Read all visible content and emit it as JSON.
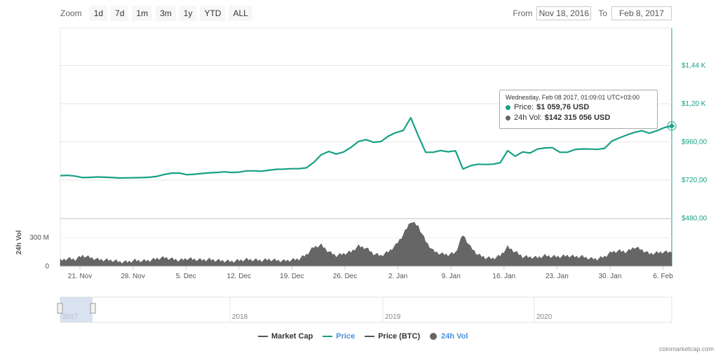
{
  "toolbar": {
    "zoom_label": "Zoom",
    "buttons": [
      "1d",
      "7d",
      "1m",
      "3m",
      "1y",
      "YTD",
      "ALL"
    ]
  },
  "range": {
    "from_label": "From",
    "from_value": "Nov 18, 2016",
    "to_label": "To",
    "to_value": "Feb 8, 2017"
  },
  "tooltip": {
    "date": "Wednesday, Feb 08 2017, 01:09:01 UTC+03:00",
    "price_label": "Price:",
    "price_value": "$1 059,76 USD",
    "vol_label": "24h Vol:",
    "vol_value": "$142 315 056 USD"
  },
  "legend": [
    {
      "label": "Market Cap",
      "color": "#555555",
      "style": "line"
    },
    {
      "label": "Price",
      "color": "#16a085",
      "style": "line"
    },
    {
      "label": "Price (BTC)",
      "color": "#555555",
      "style": "line"
    },
    {
      "label": "24h Vol",
      "color": "#4a90d9",
      "style": "circle"
    }
  ],
  "credit": "coinmarketcap.com",
  "colors": {
    "price": "#16a085",
    "volume": "#666666",
    "navigator_fill": "#c9d5ea"
  },
  "chart_data": [
    {
      "type": "line",
      "ylim": [
        480,
        1680
      ],
      "yticks": [
        {
          "value": 480,
          "label": "$480,00"
        },
        {
          "value": 720,
          "label": "$720,00"
        },
        {
          "value": 960,
          "label": "$960,00"
        },
        {
          "value": 1200,
          "label": "$1,20 K"
        },
        {
          "value": 1440,
          "label": "$1,44 K"
        }
      ],
      "xticks": [
        "21. Nov",
        "28. Nov",
        "5. Dec",
        "12. Dec",
        "19. Dec",
        "26. Dec",
        "2. Jan",
        "9. Jan",
        "16. Jan",
        "23. Jan",
        "30. Jan",
        "6. Feb"
      ],
      "xlim": [
        "2016-11-18",
        "2017-02-08"
      ],
      "series": [
        {
          "name": "Price",
          "points": [
            [
              "2016-11-18",
              748
            ],
            [
              "2016-11-19",
              750
            ],
            [
              "2016-11-20",
              745
            ],
            [
              "2016-11-21",
              736
            ],
            [
              "2016-11-22",
              737
            ],
            [
              "2016-11-23",
              740
            ],
            [
              "2016-11-24",
              738
            ],
            [
              "2016-11-25",
              736
            ],
            [
              "2016-11-26",
              733
            ],
            [
              "2016-11-27",
              734
            ],
            [
              "2016-11-28",
              735
            ],
            [
              "2016-11-29",
              736
            ],
            [
              "2016-11-30",
              738
            ],
            [
              "2016-12-01",
              744
            ],
            [
              "2016-12-02",
              756
            ],
            [
              "2016-12-03",
              764
            ],
            [
              "2016-12-04",
              764
            ],
            [
              "2016-12-05",
              754
            ],
            [
              "2016-12-06",
              757
            ],
            [
              "2016-12-07",
              762
            ],
            [
              "2016-12-08",
              766
            ],
            [
              "2016-12-09",
              768
            ],
            [
              "2016-12-10",
              772
            ],
            [
              "2016-12-11",
              768
            ],
            [
              "2016-12-12",
              770
            ],
            [
              "2016-12-13",
              778
            ],
            [
              "2016-12-14",
              778
            ],
            [
              "2016-12-15",
              776
            ],
            [
              "2016-12-16",
              782
            ],
            [
              "2016-12-17",
              788
            ],
            [
              "2016-12-18",
              789
            ],
            [
              "2016-12-19",
              792
            ],
            [
              "2016-12-20",
              792
            ],
            [
              "2016-12-21",
              797
            ],
            [
              "2016-12-22",
              832
            ],
            [
              "2016-12-23",
              880
            ],
            [
              "2016-12-24",
              900
            ],
            [
              "2016-12-25",
              884
            ],
            [
              "2016-12-26",
              897
            ],
            [
              "2016-12-27",
              926
            ],
            [
              "2016-12-28",
              963
            ],
            [
              "2016-12-29",
              974
            ],
            [
              "2016-12-30",
              958
            ],
            [
              "2016-12-31",
              962
            ],
            [
              "2017-01-01",
              996
            ],
            [
              "2017-01-02",
              1018
            ],
            [
              "2017-01-03",
              1032
            ],
            [
              "2017-01-04",
              1112
            ],
            [
              "2017-01-05",
              1000
            ],
            [
              "2017-01-06",
              895
            ],
            [
              "2017-01-07",
              895
            ],
            [
              "2017-01-08",
              906
            ],
            [
              "2017-01-09",
              898
            ],
            [
              "2017-01-10",
              904
            ],
            [
              "2017-01-11",
              790
            ],
            [
              "2017-01-12",
              810
            ],
            [
              "2017-01-13",
              820
            ],
            [
              "2017-01-14",
              818
            ],
            [
              "2017-01-15",
              820
            ],
            [
              "2017-01-16",
              829
            ],
            [
              "2017-01-17",
              905
            ],
            [
              "2017-01-18",
              870
            ],
            [
              "2017-01-19",
              897
            ],
            [
              "2017-01-20",
              890
            ],
            [
              "2017-01-21",
              915
            ],
            [
              "2017-01-22",
              922
            ],
            [
              "2017-01-23",
              924
            ],
            [
              "2017-01-24",
              895
            ],
            [
              "2017-01-25",
              895
            ],
            [
              "2017-01-26",
              912
            ],
            [
              "2017-01-27",
              916
            ],
            [
              "2017-01-28",
              915
            ],
            [
              "2017-01-29",
              913
            ],
            [
              "2017-01-30",
              920
            ],
            [
              "2017-01-31",
              966
            ],
            [
              "2017-02-01",
              986
            ],
            [
              "2017-02-02",
              1004
            ],
            [
              "2017-02-03",
              1020
            ],
            [
              "2017-02-04",
              1030
            ],
            [
              "2017-02-05",
              1015
            ],
            [
              "2017-02-06",
              1030
            ],
            [
              "2017-02-07",
              1050
            ],
            [
              "2017-02-08",
              1060
            ]
          ]
        },
        {
          "name": "24h Vol",
          "axis": "volume",
          "ylim": [
            0,
            500
          ],
          "yticks": [
            {
              "value": 0,
              "label": "0"
            },
            {
              "value": 300,
              "label": "300 M"
            }
          ],
          "ylabel": "24h Vol",
          "points": [
            [
              "2016-11-18",
              60
            ],
            [
              "2016-11-19",
              80
            ],
            [
              "2016-11-20",
              70
            ],
            [
              "2016-11-21",
              110
            ],
            [
              "2016-11-22",
              90
            ],
            [
              "2016-11-23",
              70
            ],
            [
              "2016-11-24",
              65
            ],
            [
              "2016-11-25",
              60
            ],
            [
              "2016-11-26",
              45
            ],
            [
              "2016-11-27",
              45
            ],
            [
              "2016-11-28",
              60
            ],
            [
              "2016-11-29",
              55
            ],
            [
              "2016-11-30",
              60
            ],
            [
              "2016-12-01",
              80
            ],
            [
              "2016-12-02",
              90
            ],
            [
              "2016-12-03",
              75
            ],
            [
              "2016-12-04",
              60
            ],
            [
              "2016-12-05",
              80
            ],
            [
              "2016-12-06",
              70
            ],
            [
              "2016-12-07",
              65
            ],
            [
              "2016-12-08",
              70
            ],
            [
              "2016-12-09",
              60
            ],
            [
              "2016-12-10",
              55
            ],
            [
              "2016-12-11",
              50
            ],
            [
              "2016-12-12",
              60
            ],
            [
              "2016-12-13",
              70
            ],
            [
              "2016-12-14",
              65
            ],
            [
              "2016-12-15",
              60
            ],
            [
              "2016-12-16",
              70
            ],
            [
              "2016-12-17",
              60
            ],
            [
              "2016-12-18",
              55
            ],
            [
              "2016-12-19",
              65
            ],
            [
              "2016-12-20",
              75
            ],
            [
              "2016-12-21",
              120
            ],
            [
              "2016-12-22",
              200
            ],
            [
              "2016-12-23",
              220
            ],
            [
              "2016-12-24",
              150
            ],
            [
              "2016-12-25",
              110
            ],
            [
              "2016-12-26",
              130
            ],
            [
              "2016-12-27",
              150
            ],
            [
              "2016-12-28",
              210
            ],
            [
              "2016-12-29",
              190
            ],
            [
              "2016-12-30",
              130
            ],
            [
              "2016-12-31",
              110
            ],
            [
              "2017-01-01",
              150
            ],
            [
              "2017-01-02",
              220
            ],
            [
              "2017-01-03",
              330
            ],
            [
              "2017-01-04",
              470
            ],
            [
              "2017-01-05",
              420
            ],
            [
              "2017-01-06",
              260
            ],
            [
              "2017-01-07",
              160
            ],
            [
              "2017-01-08",
              130
            ],
            [
              "2017-01-09",
              120
            ],
            [
              "2017-01-10",
              140
            ],
            [
              "2017-01-11",
              330
            ],
            [
              "2017-01-12",
              200
            ],
            [
              "2017-01-13",
              120
            ],
            [
              "2017-01-14",
              90
            ],
            [
              "2017-01-15",
              80
            ],
            [
              "2017-01-16",
              110
            ],
            [
              "2017-01-17",
              200
            ],
            [
              "2017-01-18",
              150
            ],
            [
              "2017-01-19",
              100
            ],
            [
              "2017-01-20",
              95
            ],
            [
              "2017-01-21",
              90
            ],
            [
              "2017-01-22",
              110
            ],
            [
              "2017-01-23",
              100
            ],
            [
              "2017-01-24",
              100
            ],
            [
              "2017-01-25",
              110
            ],
            [
              "2017-01-26",
              100
            ],
            [
              "2017-01-27",
              100
            ],
            [
              "2017-01-28",
              80
            ],
            [
              "2017-01-29",
              75
            ],
            [
              "2017-01-30",
              100
            ],
            [
              "2017-01-31",
              150
            ],
            [
              "2017-02-01",
              160
            ],
            [
              "2017-02-02",
              150
            ],
            [
              "2017-02-03",
              200
            ],
            [
              "2017-02-04",
              170
            ],
            [
              "2017-02-05",
              130
            ],
            [
              "2017-02-06",
              140
            ],
            [
              "2017-02-07",
              150
            ],
            [
              "2017-02-08",
              142
            ]
          ]
        }
      ]
    },
    {
      "type": "area",
      "xticks": [
        "2017",
        "2018",
        "2019",
        "2020"
      ]
    }
  ]
}
